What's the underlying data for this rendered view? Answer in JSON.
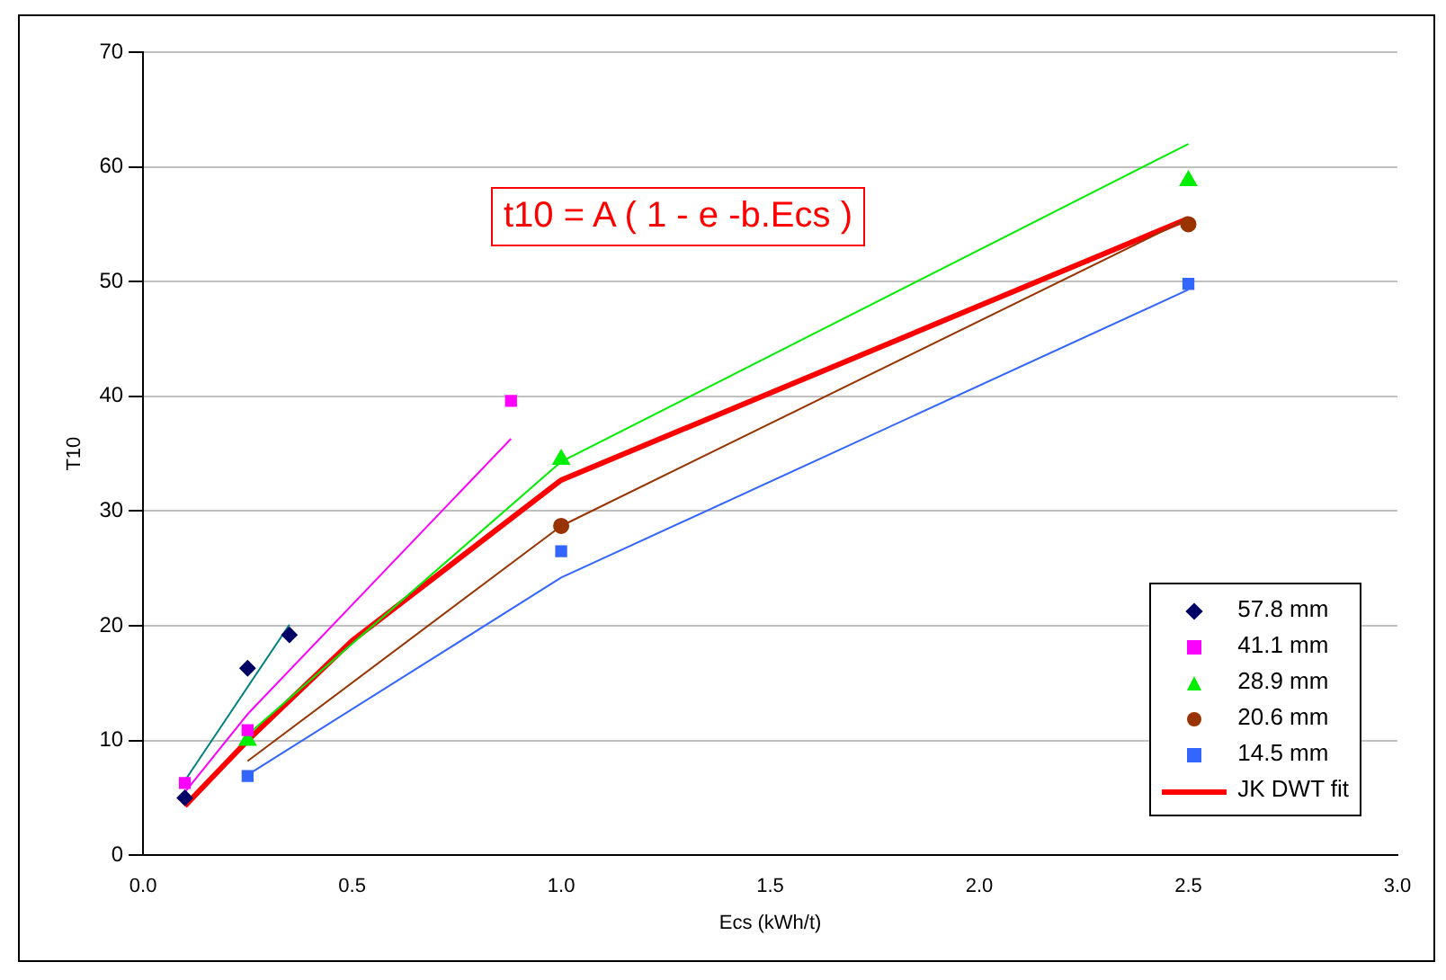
{
  "chart_data": {
    "type": "scatter",
    "xlabel": "Ecs (kWh/t)",
    "ylabel": "T10",
    "annotations": [
      "t10 = A ( 1 - e -b.Ecs )"
    ],
    "xlim": [
      0,
      3
    ],
    "xticks": [
      {
        "value": 0,
        "label": "0.0"
      },
      {
        "value": 0.5,
        "label": "0.5"
      },
      {
        "value": 1,
        "label": "1.0"
      },
      {
        "value": 1.5,
        "label": "1.5"
      },
      {
        "value": 2,
        "label": "2.0"
      },
      {
        "value": 2.5,
        "label": "2.5"
      },
      {
        "value": 3,
        "label": "3.0"
      }
    ],
    "ylim": [
      0,
      70
    ],
    "yticks": [
      0,
      10,
      20,
      30,
      40,
      50,
      60,
      70
    ],
    "grid": "y",
    "legend": "bottom right",
    "series": [
      {
        "name": "57.8 mm",
        "type": "scatter",
        "marker": "diamond",
        "color": "#000066",
        "x": [
          0.1,
          0.25,
          0.35
        ],
        "values": [
          5,
          16.3,
          19.2
        ]
      },
      {
        "name": "41.1 mm",
        "type": "scatter",
        "marker": "square",
        "color": "#ff00ff",
        "x": [
          0.1,
          0.25,
          0.88
        ],
        "values": [
          6.3,
          10.9,
          39.6
        ]
      },
      {
        "name": "28.9 mm",
        "type": "scatter",
        "marker": "triangle",
        "color": "#00ee00",
        "x": [
          0.25,
          1,
          2.5
        ],
        "values": [
          10,
          34.5,
          58.8
        ]
      },
      {
        "name": "20.6 mm",
        "type": "scatter",
        "marker": "circle",
        "color": "#993300",
        "x": [
          1,
          2.5
        ],
        "values": [
          28.7,
          55
        ]
      },
      {
        "name": "14.5 mm",
        "type": "scatter",
        "marker": "square",
        "color": "#3366ff",
        "x": [
          0.25,
          1,
          2.5
        ],
        "values": [
          6.9,
          26.5,
          49.8
        ]
      },
      {
        "type": "line",
        "marker": "none",
        "color": "#008080",
        "x": [
          0.1,
          0.35
        ],
        "values": [
          6.5,
          20.1
        ]
      },
      {
        "type": "line",
        "marker": "none",
        "color": "#ff00ff",
        "x": [
          0.1,
          0.25,
          0.88
        ],
        "values": [
          5.5,
          12.3,
          36.3
        ]
      },
      {
        "type": "line",
        "marker": "none",
        "color": "#00ee00",
        "x": [
          0.25,
          1,
          2.5
        ],
        "values": [
          10.5,
          34.3,
          62
        ]
      },
      {
        "type": "line",
        "marker": "none",
        "color": "#993300",
        "x": [
          0.25,
          1,
          2.5
        ],
        "values": [
          8.2,
          28.7,
          55.5
        ]
      },
      {
        "type": "line",
        "marker": "none",
        "color": "#3366ff",
        "x": [
          0.25,
          1,
          2.5
        ],
        "values": [
          7,
          24.2,
          49.3
        ]
      },
      {
        "name": "JK DWT fit",
        "type": "line",
        "marker": "none",
        "color": "#ff0000",
        "x": [
          0.1,
          0.25,
          0.5,
          1,
          2.5
        ],
        "values": [
          4.3,
          10,
          18.7,
          32.7,
          55.5
        ]
      }
    ]
  }
}
